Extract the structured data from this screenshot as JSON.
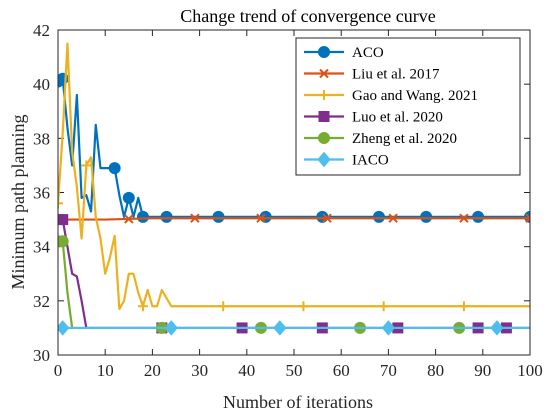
{
  "chart_data": {
    "type": "line",
    "title": "Change trend of convergence curve",
    "xlabel": "Number of iterations",
    "ylabel": "Minimum path planning",
    "xlim": [
      0,
      100
    ],
    "ylim": [
      30,
      42
    ],
    "xticks": [
      "0",
      "10",
      "20",
      "30",
      "40",
      "50",
      "60",
      "70",
      "80",
      "90",
      "100"
    ],
    "yticks": [
      "30",
      "32",
      "34",
      "36",
      "38",
      "40",
      "42"
    ],
    "grid": false,
    "legend_position": "top-right",
    "series": [
      {
        "name": "ACO",
        "color": "#0072BD",
        "marker": "circle",
        "x": [
          0,
          1,
          2,
          3,
          4,
          5,
          6,
          7,
          8,
          9,
          10,
          11,
          12,
          13,
          14,
          15,
          16,
          17,
          18,
          19,
          20,
          23,
          34,
          44,
          56,
          68,
          78,
          89,
          100
        ],
        "y": [
          40.1,
          40.2,
          38.4,
          37.0,
          39.6,
          35.8,
          35.9,
          35.3,
          38.5,
          36.9,
          36.9,
          36.9,
          36.9,
          35.9,
          35.1,
          35.8,
          35.1,
          35.8,
          35.1,
          35.1,
          35.1,
          35.1,
          35.1,
          35.1,
          35.1,
          35.1,
          35.1,
          35.1,
          35.1
        ],
        "markers_x": [
          0,
          1,
          12,
          15,
          18,
          23,
          34,
          44,
          56,
          68,
          78,
          89,
          100
        ]
      },
      {
        "name": "Liu et al. 2017",
        "color": "#D95319",
        "marker": "x",
        "x": [
          0,
          1,
          2,
          3,
          4,
          5,
          10,
          20,
          29,
          43,
          57,
          71,
          86,
          100
        ],
        "y": [
          35.0,
          35.0,
          35.0,
          35.0,
          35.0,
          35.0,
          35.0,
          35.05,
          35.05,
          35.05,
          35.05,
          35.05,
          35.05,
          35.05
        ],
        "markers_x": [
          0,
          1,
          15,
          29,
          43,
          57,
          71,
          86,
          100
        ]
      },
      {
        "name": "Gao and Wang. 2021",
        "color": "#EDB120",
        "marker": "plus",
        "x": [
          0,
          1,
          2,
          3,
          4,
          5,
          6,
          7,
          8,
          9,
          10,
          11,
          12,
          13,
          14,
          15,
          16,
          17,
          18,
          19,
          20,
          21,
          22,
          24,
          35,
          52,
          69,
          86,
          100
        ],
        "y": [
          35.6,
          38.2,
          41.5,
          37.5,
          36.2,
          34.3,
          37.0,
          37.3,
          35.1,
          34.3,
          33.0,
          33.6,
          34.4,
          31.7,
          32.0,
          33.0,
          33.0,
          32.3,
          31.8,
          32.4,
          31.8,
          31.8,
          32.4,
          31.8,
          31.8,
          31.8,
          31.8,
          31.8,
          31.8
        ],
        "markers_x": [
          0,
          6,
          18,
          35,
          52,
          69,
          86
        ]
      },
      {
        "name": "Luo et al. 2020",
        "color": "#7E2F8E",
        "marker": "square",
        "x": [
          0,
          1,
          2,
          3,
          4,
          5,
          6,
          100
        ],
        "y": [
          35.0,
          35.0,
          34.0,
          33.0,
          32.9,
          32.0,
          31.0,
          31.0
        ],
        "markers_x": [
          0,
          1,
          22,
          39,
          56,
          72,
          89,
          95
        ]
      },
      {
        "name": "Zheng et al. 2020",
        "color": "#77AC30",
        "marker": "circle",
        "x": [
          0,
          1,
          2,
          3,
          100
        ],
        "y": [
          34.2,
          34.2,
          32.3,
          31.0,
          31.0
        ],
        "markers_x": [
          0,
          1,
          22,
          43,
          64,
          85
        ]
      },
      {
        "name": "IACO",
        "color": "#4DBEEE",
        "marker": "diamond",
        "x": [
          0,
          100
        ],
        "y": [
          31.0,
          31.0
        ],
        "markers_x": [
          1,
          24,
          47,
          70,
          93
        ]
      }
    ]
  }
}
